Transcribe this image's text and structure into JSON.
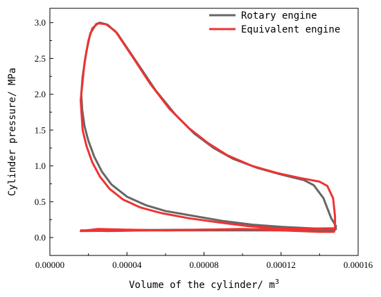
{
  "chart_data": {
    "type": "line",
    "title": "",
    "xlabel": "Volume of the cylinder/ m",
    "xlabel_superscript": "3",
    "ylabel": "Cylinder pressure/ MPa",
    "xlim": [
      0.0,
      0.00016
    ],
    "ylim": [
      -0.25,
      3.2
    ],
    "grid": false,
    "legend_position": "top-right",
    "x_ticks": [
      {
        "value": 0.0,
        "label": "0.00000"
      },
      {
        "value": 4e-05,
        "label": "0.00004"
      },
      {
        "value": 8e-05,
        "label": "0.00008"
      },
      {
        "value": 0.00012,
        "label": "0.00012"
      },
      {
        "value": 0.00016,
        "label": "0.00016"
      }
    ],
    "y_ticks": [
      {
        "value": 0.0,
        "label": "0.0"
      },
      {
        "value": 0.5,
        "label": "0.5"
      },
      {
        "value": 1.0,
        "label": "1.0"
      },
      {
        "value": 1.5,
        "label": "1.5"
      },
      {
        "value": 2.0,
        "label": "2.0"
      },
      {
        "value": 2.5,
        "label": "2.5"
      },
      {
        "value": 3.0,
        "label": "3.0"
      }
    ],
    "series": [
      {
        "name": "Rotary engine",
        "color": "#666666",
        "points": [
          [
            1.62e-05,
            0.1
          ],
          [
            3e-05,
            0.09
          ],
          [
            5e-05,
            0.1
          ],
          [
            8e-05,
            0.1
          ],
          [
            0.00011,
            0.1
          ],
          [
            0.00013,
            0.1
          ],
          [
            0.000145,
            0.1
          ],
          [
            0.0001482,
            0.11
          ],
          [
            0.0001485,
            0.16
          ],
          [
            0.000146,
            0.27
          ],
          [
            0.000142,
            0.55
          ],
          [
            0.000137,
            0.73
          ],
          [
            0.000132,
            0.8
          ],
          [
            0.00012,
            0.88
          ],
          [
            0.000108,
            0.97
          ],
          [
            9.5e-05,
            1.1
          ],
          [
            8.5e-05,
            1.25
          ],
          [
            7.5e-05,
            1.45
          ],
          [
            6.5e-05,
            1.72
          ],
          [
            5.5e-05,
            2.05
          ],
          [
            4.5e-05,
            2.45
          ],
          [
            3.5e-05,
            2.85
          ],
          [
            3e-05,
            2.97
          ],
          [
            2.6e-05,
            3.0
          ],
          [
            2.4e-05,
            2.98
          ],
          [
            2.1e-05,
            2.85
          ],
          [
            1.9e-05,
            2.6
          ],
          [
            1.7e-05,
            2.25
          ],
          [
            1.63e-05,
            2.0
          ],
          [
            1.68e-05,
            1.78
          ],
          [
            1.8e-05,
            1.55
          ],
          [
            2e-05,
            1.35
          ],
          [
            2.3e-05,
            1.13
          ],
          [
            2.7e-05,
            0.92
          ],
          [
            3.2e-05,
            0.74
          ],
          [
            4e-05,
            0.57
          ],
          [
            5e-05,
            0.45
          ],
          [
            6e-05,
            0.37
          ],
          [
            7.5e-05,
            0.3
          ],
          [
            9e-05,
            0.23
          ],
          [
            0.000105,
            0.18
          ],
          [
            0.00012,
            0.15
          ],
          [
            0.000135,
            0.13
          ],
          [
            0.000145,
            0.12
          ],
          [
            0.0001485,
            0.12
          ]
        ]
      },
      {
        "name": "Equivalent engine",
        "color": "#ee3333",
        "points": [
          [
            1.6e-05,
            0.09
          ],
          [
            2.5e-05,
            0.12
          ],
          [
            4e-05,
            0.11
          ],
          [
            6e-05,
            0.1
          ],
          [
            8e-05,
            0.11
          ],
          [
            0.0001,
            0.12
          ],
          [
            0.00012,
            0.1
          ],
          [
            0.00014,
            0.08
          ],
          [
            0.0001475,
            0.08
          ],
          [
            0.000148,
            0.13
          ],
          [
            0.000148,
            0.3
          ],
          [
            0.000147,
            0.55
          ],
          [
            0.000144,
            0.72
          ],
          [
            0.00014,
            0.78
          ],
          [
            0.00013,
            0.83
          ],
          [
            0.000118,
            0.9
          ],
          [
            0.000105,
            1.0
          ],
          [
            9.2e-05,
            1.15
          ],
          [
            8.2e-05,
            1.32
          ],
          [
            7.2e-05,
            1.53
          ],
          [
            6.2e-05,
            1.8
          ],
          [
            5.2e-05,
            2.15
          ],
          [
            4.3e-05,
            2.52
          ],
          [
            3.4e-05,
            2.88
          ],
          [
            2.9e-05,
            2.98
          ],
          [
            2.5e-05,
            2.99
          ],
          [
            2.2e-05,
            2.92
          ],
          [
            2e-05,
            2.75
          ],
          [
            1.8e-05,
            2.45
          ],
          [
            1.67e-05,
            2.1
          ],
          [
            1.6e-05,
            1.92
          ],
          [
            1.65e-05,
            1.7
          ],
          [
            1.7e-05,
            1.5
          ],
          [
            1.9e-05,
            1.28
          ],
          [
            2.2e-05,
            1.05
          ],
          [
            2.6e-05,
            0.85
          ],
          [
            3.1e-05,
            0.68
          ],
          [
            3.8e-05,
            0.53
          ],
          [
            4.7e-05,
            0.42
          ],
          [
            5.8e-05,
            0.34
          ],
          [
            7.2e-05,
            0.27
          ],
          [
            8.8e-05,
            0.21
          ],
          [
            0.000103,
            0.16
          ],
          [
            0.000118,
            0.13
          ],
          [
            0.000132,
            0.12
          ],
          [
            0.000143,
            0.12
          ],
          [
            0.000148,
            0.13
          ]
        ]
      }
    ]
  }
}
